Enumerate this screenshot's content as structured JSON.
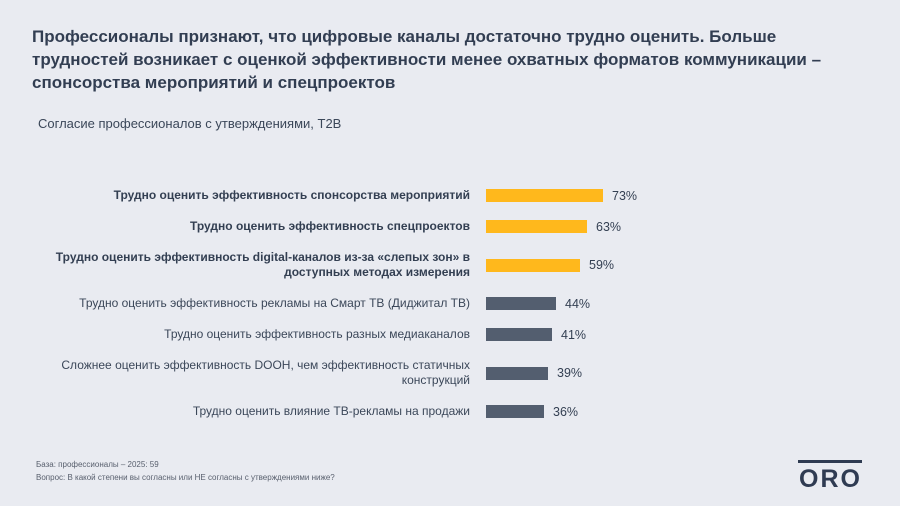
{
  "slide": {
    "title": "Профессионалы признают, что цифровые каналы достаточно трудно оценить. Больше трудностей возникает с оценкой эффективности менее охватных форматов коммуникации – спонсорства мероприятий и спецпроектов",
    "subtitle": "Согласие профессионалов с утверждениями, T2B",
    "footer_line1": "База: профессионалы – 2025: 59",
    "footer_line2": "Вопрос: В какой степени вы согласны или НЕ согласны с утверждениями ниже?",
    "logo_text": "ORO"
  },
  "chart_data": {
    "type": "bar",
    "orientation": "horizontal",
    "title": "Согласие профессионалов с утверждениями, T2B",
    "xlim": [
      0,
      100
    ],
    "grid": false,
    "legend": "none",
    "colors": {
      "highlight_bar": "#FFB81C",
      "default_bar": "#535E6F"
    },
    "categories": [
      "Трудно оценить эффективность спонсорства мероприятий",
      "Трудно оценить эффективность спецпроектов",
      "Трудно оценить эффективность digital-каналов из-за «слепых зон» в доступных методах измерения",
      "Трудно оценить эффективность рекламы на Смарт ТВ (Диджитал ТВ)",
      "Трудно оценить эффективность разных медиаканалов",
      "Сложнее оценить эффективность DOOH, чем эффективность статичных конструкций",
      "Трудно оценить влияние ТВ-рекламы на продажи"
    ],
    "values": [
      73,
      63,
      59,
      44,
      41,
      39,
      36
    ],
    "rows": [
      {
        "label": "Трудно оценить эффективность спонсорства мероприятий",
        "value": 73,
        "display": "73%",
        "highlight": true
      },
      {
        "label": "Трудно оценить эффективность спецпроектов",
        "value": 63,
        "display": "63%",
        "highlight": true
      },
      {
        "label": "Трудно оценить эффективность digital-каналов из-за «слепых зон» в доступных методах измерения",
        "value": 59,
        "display": "59%",
        "highlight": true
      },
      {
        "label": "Трудно оценить эффективность рекламы на Смарт ТВ (Диджитал ТВ)",
        "value": 44,
        "display": "44%",
        "highlight": false
      },
      {
        "label": "Трудно оценить эффективность разных медиаканалов",
        "value": 41,
        "display": "41%",
        "highlight": false
      },
      {
        "label": "Сложнее оценить эффективность DOOH, чем эффективность статичных конструкций",
        "value": 39,
        "display": "39%",
        "highlight": false
      },
      {
        "label": "Трудно оценить влияние ТВ-рекламы на продажи",
        "value": 36,
        "display": "36%",
        "highlight": false
      }
    ]
  }
}
